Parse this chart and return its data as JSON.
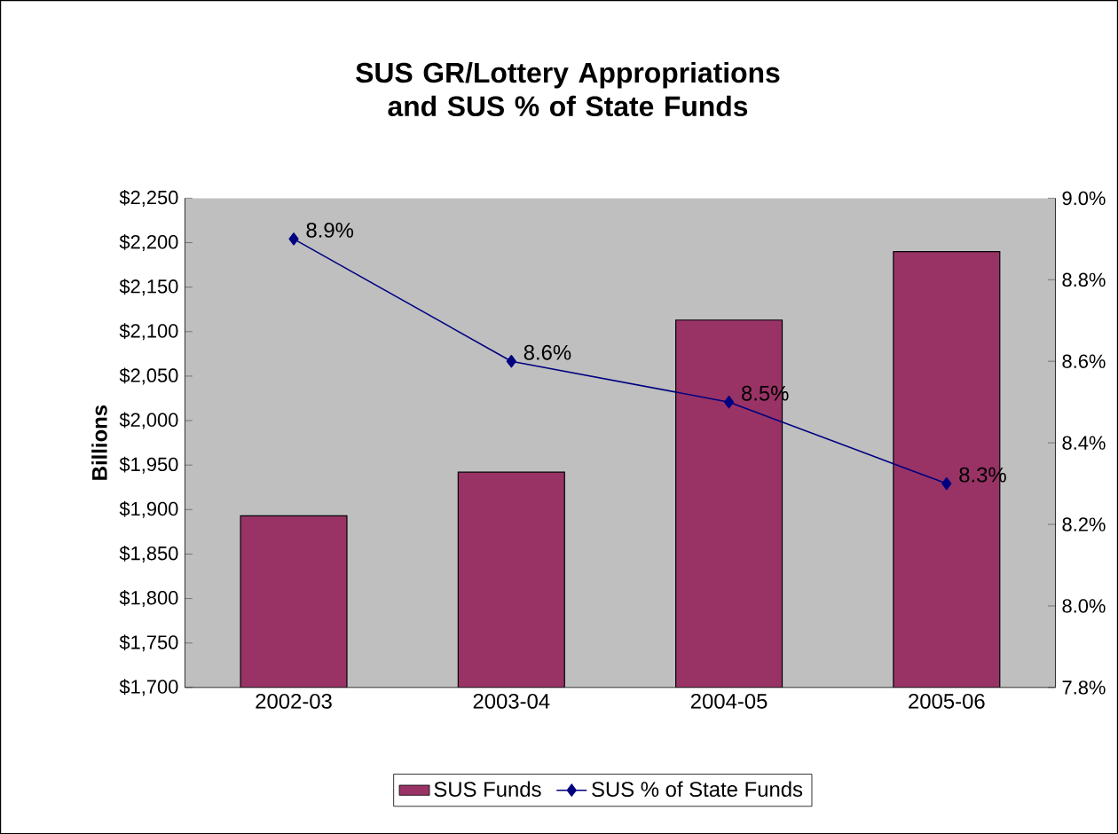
{
  "chart_data": {
    "type": "bar",
    "title": "SUS GR/Lottery Appropriations and SUS % of State Funds",
    "ylabel": "Billions",
    "categories": [
      "2002-03",
      "2003-04",
      "2004-05",
      "2005-06"
    ],
    "series": [
      {
        "name": "SUS Funds",
        "color": "#993366",
        "values": [
          1893,
          1942,
          2113,
          2190
        ]
      },
      {
        "name": "SUS % of State Funds",
        "type": "line",
        "axis": "y2",
        "color": "#000080",
        "marker": "diamond",
        "values": [
          8.9,
          8.6,
          8.5,
          8.3
        ],
        "value_labels": [
          "8.9%",
          "8.6%",
          "8.5%",
          "8.3%"
        ]
      }
    ],
    "ylim": [
      1700,
      2250
    ],
    "yticks": [
      {
        "value": 1700,
        "label": "$1,700"
      },
      {
        "value": 1750,
        "label": "$1,750"
      },
      {
        "value": 1800,
        "label": "$1,800"
      },
      {
        "value": 1850,
        "label": "$1,850"
      },
      {
        "value": 1900,
        "label": "$1,900"
      },
      {
        "value": 1950,
        "label": "$1,950"
      },
      {
        "value": 2000,
        "label": "$2,000"
      },
      {
        "value": 2050,
        "label": "$2,050"
      },
      {
        "value": 2100,
        "label": "$2,100"
      },
      {
        "value": 2150,
        "label": "$2,150"
      },
      {
        "value": 2200,
        "label": "$2,200"
      },
      {
        "value": 2250,
        "label": "$2,250"
      }
    ],
    "y2lim": [
      7.8,
      9.0
    ],
    "y2ticks": [
      {
        "value": 7.8,
        "label": "7.8%"
      },
      {
        "value": 8.0,
        "label": "8.0%"
      },
      {
        "value": 8.2,
        "label": "8.2%"
      },
      {
        "value": 8.4,
        "label": "8.4%"
      },
      {
        "value": 8.6,
        "label": "8.6%"
      },
      {
        "value": 8.8,
        "label": "8.8%"
      },
      {
        "value": 9.0,
        "label": "9.0%"
      }
    ],
    "legend": "bottom"
  }
}
